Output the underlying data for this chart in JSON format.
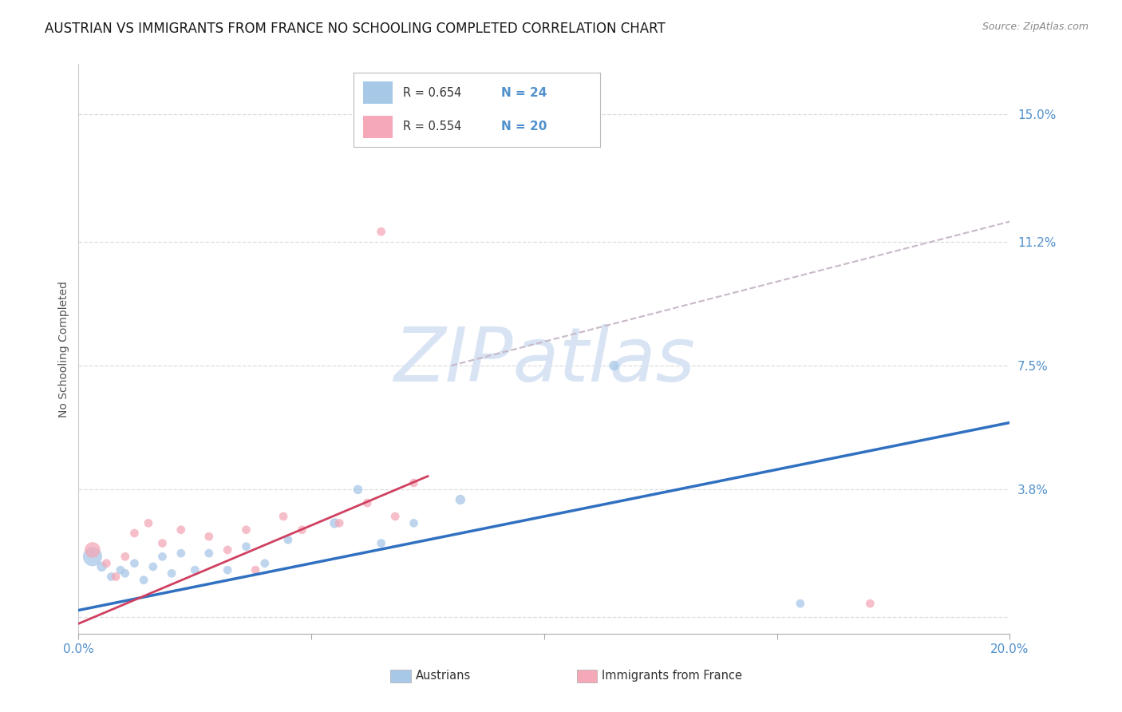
{
  "title": "AUSTRIAN VS IMMIGRANTS FROM FRANCE NO SCHOOLING COMPLETED CORRELATION CHART",
  "source": "Source: ZipAtlas.com",
  "ylabel": "No Schooling Completed",
  "xlim": [
    0.0,
    0.2
  ],
  "ylim": [
    -0.005,
    0.165
  ],
  "yticks": [
    0.0,
    0.038,
    0.075,
    0.112,
    0.15
  ],
  "ytick_labels": [
    "",
    "3.8%",
    "7.5%",
    "11.2%",
    "15.0%"
  ],
  "xticks": [
    0.0,
    0.05,
    0.1,
    0.15,
    0.2
  ],
  "xtick_labels": [
    "0.0%",
    "",
    "",
    "",
    "20.0%"
  ],
  "legend_r_blue": "R = 0.654",
  "legend_n_blue": "N = 24",
  "legend_r_pink": "R = 0.554",
  "legend_n_pink": "N = 20",
  "label_austrians": "Austrians",
  "label_immigrants": "Immigrants from France",
  "blue_color": "#A8C8E8",
  "pink_color": "#F4A8B8",
  "blue_line_color": "#3070C0",
  "pink_line_color": "#D04060",
  "dashed_line_color": "#C8B8C8",
  "watermark_color": "#D8E4F4",
  "blue_scatter_x": [
    0.003,
    0.005,
    0.007,
    0.009,
    0.01,
    0.012,
    0.014,
    0.016,
    0.018,
    0.02,
    0.022,
    0.025,
    0.028,
    0.032,
    0.036,
    0.04,
    0.045,
    0.055,
    0.06,
    0.065,
    0.072,
    0.082,
    0.115,
    0.155
  ],
  "blue_scatter_y": [
    0.018,
    0.015,
    0.012,
    0.014,
    0.013,
    0.016,
    0.011,
    0.015,
    0.018,
    0.013,
    0.019,
    0.014,
    0.019,
    0.014,
    0.021,
    0.016,
    0.023,
    0.028,
    0.038,
    0.022,
    0.028,
    0.035,
    0.075,
    0.004
  ],
  "blue_scatter_sizes": [
    300,
    80,
    60,
    60,
    60,
    60,
    60,
    60,
    60,
    60,
    60,
    60,
    60,
    60,
    60,
    60,
    60,
    80,
    70,
    60,
    60,
    80,
    80,
    60
  ],
  "pink_scatter_x": [
    0.003,
    0.006,
    0.008,
    0.01,
    0.012,
    0.015,
    0.018,
    0.022,
    0.028,
    0.032,
    0.036,
    0.038,
    0.044,
    0.048,
    0.056,
    0.062,
    0.068,
    0.072,
    0.065,
    0.17
  ],
  "pink_scatter_y": [
    0.02,
    0.016,
    0.012,
    0.018,
    0.025,
    0.028,
    0.022,
    0.026,
    0.024,
    0.02,
    0.026,
    0.014,
    0.03,
    0.026,
    0.028,
    0.034,
    0.03,
    0.04,
    0.115,
    0.004
  ],
  "pink_scatter_sizes": [
    200,
    60,
    60,
    60,
    60,
    60,
    60,
    60,
    60,
    60,
    60,
    60,
    60,
    60,
    60,
    60,
    60,
    60,
    60,
    60
  ],
  "blue_line_x": [
    0.0,
    0.2
  ],
  "blue_line_y": [
    0.002,
    0.058
  ],
  "pink_line_x": [
    0.0,
    0.075
  ],
  "pink_line_y": [
    -0.002,
    0.042
  ],
  "dashed_line_x": [
    0.08,
    0.2
  ],
  "dashed_line_y": [
    0.075,
    0.118
  ],
  "background_color": "#FFFFFF",
  "grid_color": "#DDDDDD",
  "title_fontsize": 12,
  "axis_label_fontsize": 10,
  "tick_fontsize": 11,
  "tick_color": "#5090CC",
  "ylabel_color": "#555555"
}
